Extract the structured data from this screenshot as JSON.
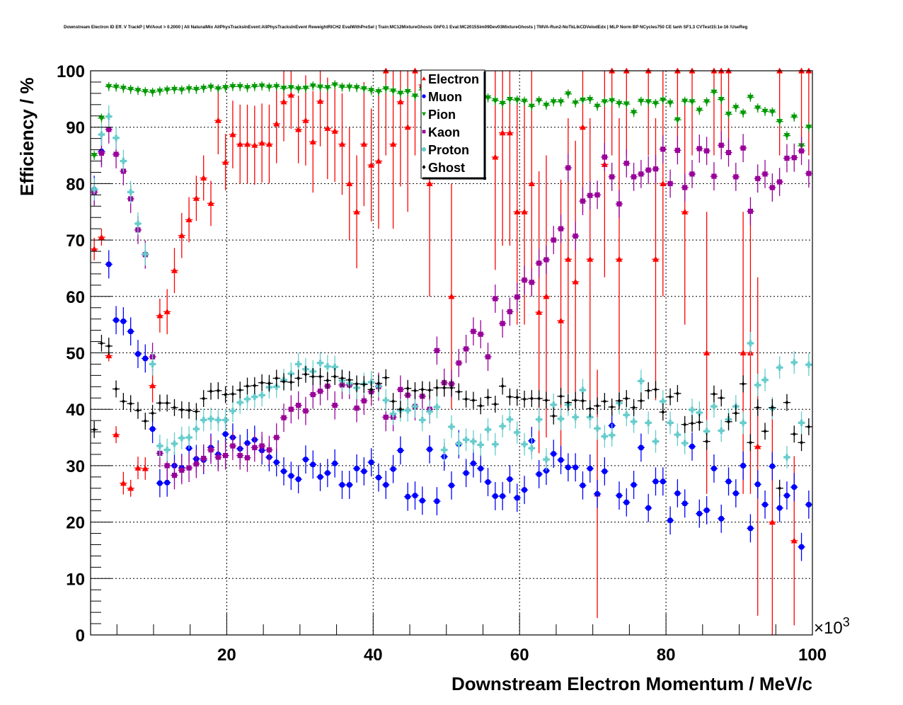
{
  "chart_data": {
    "type": "scatter",
    "title": "Downstream Electron ID Eff. V TrackP | MVAout > 0.2000 | All NaturalMix AllPhysTracksInEvent:AllPhysTracksInEvent ReweightRICH2 EvalWithPreSel | Train:MC12MixtureGhosts GhF0.1 Eval:MC2015Sim09Dev03MixtureGhosts | TMVA-Run2-NoTkLikCDVelodEdx | MLP Norm BP NCycles750 CE tanh SF1.3 CVTest15:1e-16 !UseReg",
    "xlabel": "Downstream Electron Momentum / MeV/c",
    "ylabel": "Efficiency / %",
    "x_exponent": "×10",
    "x_exponent_power": "3",
    "xlim": [
      1.4,
      100
    ],
    "ylim": [
      0,
      100
    ],
    "nbins": 99,
    "xticks": [
      "20",
      "40",
      "60",
      "80",
      "100"
    ],
    "yticks": [
      "0",
      "10",
      "20",
      "30",
      "40",
      "50",
      "60",
      "70",
      "80",
      "90",
      "100"
    ],
    "grid": true,
    "legend_position": "top-center",
    "series": [
      {
        "name": "Electron",
        "color": "#ff0000",
        "marker": "triangle-up",
        "values": [
          68.4,
          70.5,
          49.5,
          35.5,
          26.9,
          26,
          29.6,
          29.5,
          44.2,
          56.6,
          57.3,
          64.6,
          70.8,
          73.6,
          77.4,
          81,
          76.5,
          91.2,
          83.8,
          88.7,
          87,
          87,
          86.8,
          87.2,
          87,
          90.6,
          94.5,
          95.7,
          89.6,
          91.2,
          87.4,
          94.6,
          89.8,
          89.3,
          87,
          80,
          75,
          87,
          83.3,
          84,
          100,
          87,
          94.5,
          90,
          100,
          97.5,
          80,
          null,
          null,
          60,
          null,
          null,
          null,
          null,
          null,
          84.7,
          89,
          89,
          75,
          75,
          80,
          57.2,
          60,
          null,
          55.7,
          66.6,
          62.6,
          90,
          66.6,
          25,
          83.4,
          100,
          66.6,
          100,
          null,
          null,
          100,
          66.6,
          80,
          null,
          100,
          75,
          100,
          null,
          50,
          100,
          100,
          100,
          null,
          50,
          50,
          33.4,
          null,
          20,
          100,
          null,
          16.7,
          100,
          100
        ],
        "err": [
          2,
          1.5,
          1,
          1.5,
          2,
          1.5,
          2,
          2,
          3,
          3,
          4,
          4,
          4,
          4,
          4,
          4,
          4,
          6,
          5,
          6,
          7,
          7,
          7,
          7,
          7,
          7,
          7,
          6,
          6,
          8,
          9,
          8,
          9,
          9,
          9,
          10,
          10,
          11,
          10,
          12,
          15,
          15,
          15,
          15,
          15,
          15,
          20,
          20,
          20,
          20,
          20,
          20,
          20,
          20,
          20,
          20,
          20,
          20,
          20,
          20,
          20,
          25,
          25,
          20,
          25,
          25,
          25,
          15,
          25,
          22,
          20,
          15,
          25,
          15,
          20,
          20,
          15,
          25,
          20,
          20,
          15,
          20,
          15,
          20,
          25,
          15,
          15,
          15,
          20,
          25,
          25,
          30,
          20,
          20,
          15,
          20,
          15,
          15,
          15
        ]
      },
      {
        "name": "Muon",
        "color": "#0000ff",
        "marker": "circle",
        "values": [
          78.9,
          85.7,
          65.7,
          55.8,
          55.6,
          53.8,
          49.8,
          49,
          36.5,
          26.9,
          27,
          30,
          29.6,
          33.1,
          31.2,
          31,
          33.2,
          32,
          35.6,
          35,
          33,
          34,
          34.6,
          32.7,
          31.5,
          30.6,
          29,
          28.2,
          27.6,
          31.1,
          30.2,
          28,
          28.7,
          30.4,
          26.6,
          26.6,
          29.5,
          29,
          30.6,
          27.9,
          26.6,
          29.4,
          32.7,
          24.5,
          24.7,
          23.8,
          32.9,
          23.7,
          31.6,
          26.5,
          33.8,
          28.7,
          30.4,
          29.5,
          27.1,
          24.6,
          24.6,
          27.6,
          24.3,
          25.7,
          34.4,
          28.5,
          29.1,
          32.1,
          31,
          29.7,
          29.7,
          26.5,
          29.5,
          25,
          29,
          37.1,
          24.7,
          23.5,
          26.6,
          33.2,
          22.5,
          27.2,
          27.2,
          20.3,
          25.1,
          23.3,
          33.4,
          21.5,
          22.1,
          29.5,
          20.6,
          27.2,
          25.1,
          30,
          18.9,
          26.7,
          23.1,
          29.9,
          22.5,
          24.7,
          26.2,
          15.6,
          23.1
        ],
        "err": 2.5
      },
      {
        "name": "Pion",
        "color": "#009900",
        "marker": "triangle-down",
        "values": [
          85,
          91.6,
          97.2,
          97.1,
          96.9,
          96.7,
          96.5,
          96.3,
          96.2,
          96.4,
          96.6,
          96.7,
          96.6,
          96.8,
          96.7,
          96.9,
          97.1,
          96.8,
          97,
          97.2,
          97.2,
          97,
          97.2,
          97.3,
          97.1,
          97.2,
          96.9,
          97,
          96.8,
          96.9,
          97.3,
          97.1,
          97,
          97.5,
          97.1,
          97.1,
          97,
          96.8,
          96.5,
          96.3,
          96.8,
          96.4,
          96,
          96.3,
          95.5,
          96.6,
          95.8,
          95.5,
          95,
          95.3,
          95,
          95.2,
          95,
          94.8,
          95.2,
          94.7,
          94.2,
          94.9,
          94.8,
          94.6,
          93.7,
          94.7,
          93.9,
          94.5,
          94.5,
          95.9,
          94.3,
          94.8,
          94.9,
          93.7,
          94.5,
          94.7,
          94.2,
          94.1,
          92.6,
          94.6,
          94.5,
          94.2,
          94.8,
          94.3,
          91.3,
          94.6,
          94.5,
          93,
          94.5,
          96.2,
          94.9,
          92.3,
          93.5,
          92.5,
          95.3,
          93.4,
          92.8,
          92.7,
          91,
          88.5,
          91.8,
          86.7,
          90
        ],
        "err": 0.8
      },
      {
        "name": "Kaon",
        "color": "#990099",
        "marker": "square",
        "values": [
          78.5,
          85.4,
          89.6,
          85.2,
          82.2,
          77.3,
          71.8,
          67.4,
          49.3,
          32.2,
          30,
          28.3,
          29.2,
          29.6,
          30.3,
          31.3,
          32.8,
          31.5,
          31.8,
          33.5,
          31.8,
          31.4,
          33.2,
          33.5,
          32.8,
          35,
          38.5,
          40,
          40.7,
          39.7,
          42.6,
          43.2,
          44.1,
          40.7,
          44.3,
          44.3,
          40.2,
          41.5,
          43.1,
          44,
          38.6,
          38.6,
          43.5,
          42.5,
          40.5,
          42.3,
          40,
          50.4,
          44.7,
          44.5,
          48.2,
          50.7,
          53.8,
          53.3,
          49.3,
          59.6,
          55.2,
          57.3,
          59.9,
          62.9,
          62.5,
          65.9,
          66.5,
          70,
          72,
          82.8,
          70.7,
          76.9,
          77.9,
          78,
          84.7,
          81.2,
          76.4,
          83.6,
          81.2,
          81.7,
          82.4,
          82.6,
          86.1,
          80,
          85.9,
          79.3,
          81.7,
          86.2,
          85.8,
          81.3,
          86.8,
          85.5,
          81.2,
          86.3,
          75.1,
          80.9,
          81.7,
          79.3,
          80.3,
          84.5,
          84.6,
          85.8,
          81.8
        ],
        "err": 2.5
      },
      {
        "name": "Proton",
        "color": "#66cccc",
        "marker": "cross",
        "values": [
          79,
          88.7,
          91.9,
          88.1,
          84,
          78.5,
          72.9,
          67.5,
          48,
          33.5,
          32.8,
          33.9,
          34.9,
          35,
          36.5,
          38.1,
          38.3,
          38.1,
          38.1,
          39.7,
          41.2,
          41.8,
          42.2,
          42.5,
          43.9,
          44,
          45.2,
          46.3,
          48,
          47.1,
          46.7,
          48.2,
          47.6,
          47.5,
          45.1,
          44.6,
          43.8,
          44.5,
          44.8,
          44.1,
          41.6,
          39.2,
          39.8,
          39.8,
          40.5,
          38.1,
          39.6,
          40.4,
          32.8,
          36.9,
          33.9,
          34.6,
          34.3,
          33.7,
          36.4,
          33.8,
          37,
          38.2,
          35.9,
          33.8,
          33.1,
          38.2,
          31.1,
          40.8,
          38.3,
          40.8,
          38.6,
          43.4,
          38.6,
          36.6,
          35.2,
          35.4,
          41.1,
          39,
          37.8,
          45,
          37.6,
          34.3,
          41.4,
          37.6,
          35.5,
          34,
          39.9,
          39.4,
          36.1,
          40.5,
          36.2,
          38.2,
          40.5,
          37.6,
          51.7,
          44.3,
          45.2,
          40.2,
          47.4,
          31.5,
          48.3,
          37.6,
          47.9
        ],
        "err": 2
      },
      {
        "name": "Ghost",
        "color": "#000000",
        "marker": "diamond",
        "values": [
          36.4,
          51.7,
          51.2,
          43.6,
          41.4,
          41,
          39.8,
          37.9,
          39.3,
          41.1,
          41.1,
          40.3,
          39.9,
          39.8,
          39.6,
          41.9,
          43.2,
          43.3,
          42.6,
          42.7,
          43.4,
          44.1,
          44.2,
          44.7,
          44.6,
          45.5,
          44.9,
          44.8,
          45.5,
          46.2,
          45.8,
          45.8,
          45.1,
          45.8,
          45.5,
          45.2,
          44.5,
          44.4,
          43.5,
          44.6,
          45.6,
          41.4,
          40,
          43.7,
          43.3,
          43.5,
          43.4,
          43.8,
          43.8,
          43.8,
          43.1,
          41.8,
          41.6,
          40.6,
          42.1,
          40.9,
          44.1,
          42.2,
          42.1,
          41.8,
          41.9,
          41.9,
          41.6,
          38.8,
          42.3,
          41.2,
          41.6,
          41.5,
          40.1,
          40.6,
          41.4,
          40.4,
          41.5,
          41.9,
          40.3,
          41.5,
          43.3,
          43.5,
          39.5,
          42.2,
          42.8,
          37.3,
          37.5,
          37.7,
          34.3,
          42.7,
          42,
          37.8,
          39.3,
          44.5,
          34.1,
          40.3,
          36.1,
          40.3,
          26,
          41.2,
          35.6,
          34.1,
          36.9
        ],
        "err": 1.5
      }
    ]
  }
}
